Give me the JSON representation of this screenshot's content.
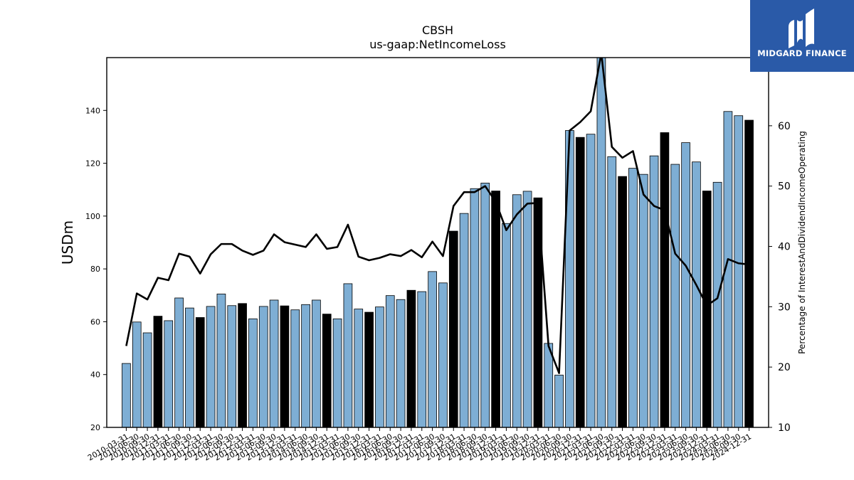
{
  "chart_data": {
    "type": "bar",
    "title": "CBSH",
    "subtitle": "us-gaap:NetIncomeLoss",
    "ylabel": "USDm",
    "y2label": "Percentage of InterestAndDividendIncomeOperating",
    "ylim": [
      20,
      160
    ],
    "y2lim": [
      10,
      71.3
    ],
    "yticks": [
      20,
      40,
      60,
      80,
      100,
      120,
      140
    ],
    "y2ticks": [
      10,
      20,
      30,
      40,
      50,
      60
    ],
    "categories": [
      "2010-03-31",
      "2010-06-30",
      "2010-09-30",
      "2010-12-31",
      "2011-03-31",
      "2011-06-30",
      "2011-09-30",
      "2011-12-31",
      "2012-03-31",
      "2012-06-30",
      "2012-09-30",
      "2012-12-31",
      "2013-03-31",
      "2013-06-30",
      "2013-09-30",
      "2013-12-31",
      "2014-03-31",
      "2014-06-30",
      "2014-09-30",
      "2014-12-31",
      "2015-03-31",
      "2015-06-30",
      "2015-09-30",
      "2015-12-31",
      "2016-03-31",
      "2016-06-30",
      "2016-09-30",
      "2016-12-31",
      "2017-03-31",
      "2017-06-30",
      "2017-09-30",
      "2017-12-31",
      "2018-03-31",
      "2018-06-30",
      "2018-09-30",
      "2018-12-31",
      "2019-03-31",
      "2019-06-30",
      "2019-09-30",
      "2019-12-31",
      "2020-03-31",
      "2020-06-30",
      "2020-09-30",
      "2020-12-31",
      "2021-03-31",
      "2021-06-30",
      "2021-09-30",
      "2021-12-31",
      "2022-03-31",
      "2022-06-30",
      "2022-09-30",
      "2022-12-31",
      "2023-03-31",
      "2023-06-30",
      "2023-09-30",
      "2023-12-31",
      "2024-03-31",
      "2024-06-30",
      "2024-09-30",
      "2024-12-31"
    ],
    "xtick_labels": [
      "2010-03-31",
      "2010-06-30",
      "2010-09-30",
      "2010-12-31",
      "2011-03-31",
      "2011-06-30",
      "2011-09-30",
      "2011-12-31",
      "2012-03-31",
      "2012-06-30",
      "2012-09-30",
      "2012-12-31",
      "2013-03-31",
      "2013-06-30",
      "2013-09-30",
      "2013-12-31",
      "2014-03-31",
      "2014-06-30",
      "2014-09-30",
      "2014-12-31",
      "2015-03-31",
      "2015-06-30",
      "2015-09-30",
      "2015-12-31",
      "2016-03-31",
      "2016-06-30",
      "2016-09-30",
      "2016-12-31",
      "2017-03-31",
      "2017-06-30",
      "2017-09-30",
      "2017-12-31",
      "2018-03-31",
      "2018-06-30",
      "2018-09-30",
      "2018-12-31",
      "2019-03-31",
      "2019-06-30",
      "2019-09-30",
      "2019-12-31",
      "2020-03-31",
      "2020-06-30",
      "2020-09-30",
      "2020-12-31",
      "2021-03-31",
      "2021-06-30",
      "2021-09-30",
      "2021-12-31",
      "2022-03-31",
      "2022-06-30",
      "2022-09-30",
      "2022-12-31",
      "2023-03-31",
      "2023-06-30",
      "2023-09-30",
      "2023-12-31",
      "2024-03-31",
      "2024-06-30",
      "2024-09-30",
      "2024-12-31"
    ],
    "series": [
      {
        "name": "",
        "kind": "bar",
        "axis": "left",
        "values": [
          44.2,
          59.9,
          55.8,
          62.1,
          60.4,
          69.0,
          65.2,
          61.6,
          65.8,
          70.5,
          66.1,
          66.9,
          61.1,
          65.8,
          68.2,
          66.0,
          64.5,
          66.5,
          68.2,
          62.9,
          61.1,
          74.4,
          64.8,
          63.6,
          65.6,
          69.9,
          68.4,
          71.9,
          71.4,
          79.0,
          74.7,
          94.3,
          101.0,
          110.4,
          112.5,
          109.5,
          97.2,
          108.1,
          109.4,
          106.9,
          51.8,
          39.8,
          132.4,
          129.8,
          131.0,
          165.0,
          122.5,
          115.0,
          118.1,
          115.8,
          122.8,
          131.6,
          119.6,
          127.8,
          120.5,
          109.5,
          112.8,
          139.6,
          138.0,
          136.3
        ]
      },
      {
        "name": "",
        "kind": "line",
        "axis": "right",
        "values": [
          23.5,
          32.2,
          31.2,
          34.8,
          34.4,
          38.8,
          38.3,
          35.5,
          38.7,
          40.4,
          40.4,
          39.3,
          38.6,
          39.3,
          42.0,
          40.7,
          40.3,
          39.9,
          42.0,
          39.6,
          39.9,
          43.6,
          38.3,
          37.7,
          38.1,
          38.7,
          38.4,
          39.4,
          38.2,
          40.8,
          38.4,
          46.7,
          49.0,
          49.0,
          50.0,
          47.4,
          42.7,
          45.3,
          47.1,
          47.2,
          23.5,
          19.0,
          59.2,
          60.6,
          62.4,
          72.0,
          56.5,
          54.7,
          55.8,
          48.6,
          46.7,
          46.0,
          38.8,
          36.8,
          33.6,
          30.2,
          31.4,
          37.9,
          37.2,
          37.0
        ]
      }
    ],
    "bar_colors": {
      "q1_q3": "#7eaed4",
      "q4": "#000000"
    },
    "grid": false,
    "legend": "none"
  },
  "logo": {
    "brand": "MIDGARD FINANCE"
  }
}
